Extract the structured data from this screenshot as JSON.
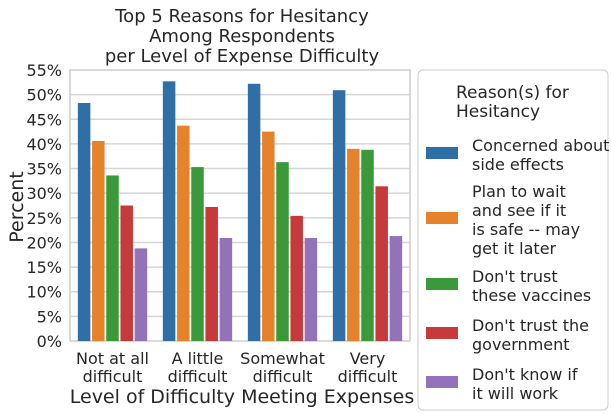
{
  "chart_data": {
    "type": "bar",
    "title_lines": [
      "Top 5 Reasons for Hesitancy",
      "Among Respondents",
      "per Level of Expense Difficulty"
    ],
    "xlabel": "Level of Difficulty Meeting Expenses",
    "ylabel": "Percent",
    "ylim": [
      0,
      55
    ],
    "yticks": [
      "0%",
      "5%",
      "10%",
      "15%",
      "20%",
      "25%",
      "30%",
      "35%",
      "40%",
      "45%",
      "50%",
      "55%"
    ],
    "grid": true,
    "categories": [
      [
        "Not at all",
        "difficult"
      ],
      [
        "A little",
        "difficult"
      ],
      [
        "Somewhat",
        "difficult"
      ],
      [
        "Very",
        "difficult"
      ]
    ],
    "legend": {
      "title_lines": [
        "Reason(s) for",
        "Hesitancy"
      ],
      "placement": "outside-right"
    },
    "series": [
      {
        "name_lines": [
          "Concerned about",
          "side effects"
        ],
        "color": "#2f6fa5",
        "values": [
          48.3,
          52.7,
          52.2,
          50.9
        ]
      },
      {
        "name_lines": [
          "Plan to wait",
          "and see if it",
          "is safe -- may",
          "get it later"
        ],
        "color": "#e5822a",
        "values": [
          40.6,
          43.7,
          42.5,
          39.0
        ]
      },
      {
        "name_lines": [
          "Don't trust",
          "these vaccines"
        ],
        "color": "#3a9a3a",
        "values": [
          33.6,
          35.3,
          36.3,
          38.8
        ]
      },
      {
        "name_lines": [
          "Don't trust the",
          "government"
        ],
        "color": "#c73a3c",
        "values": [
          27.5,
          27.2,
          25.4,
          31.4
        ]
      },
      {
        "name_lines": [
          "Don't know if",
          "it will work"
        ],
        "color": "#9272b8",
        "values": [
          18.8,
          20.9,
          20.9,
          21.3
        ]
      }
    ]
  }
}
